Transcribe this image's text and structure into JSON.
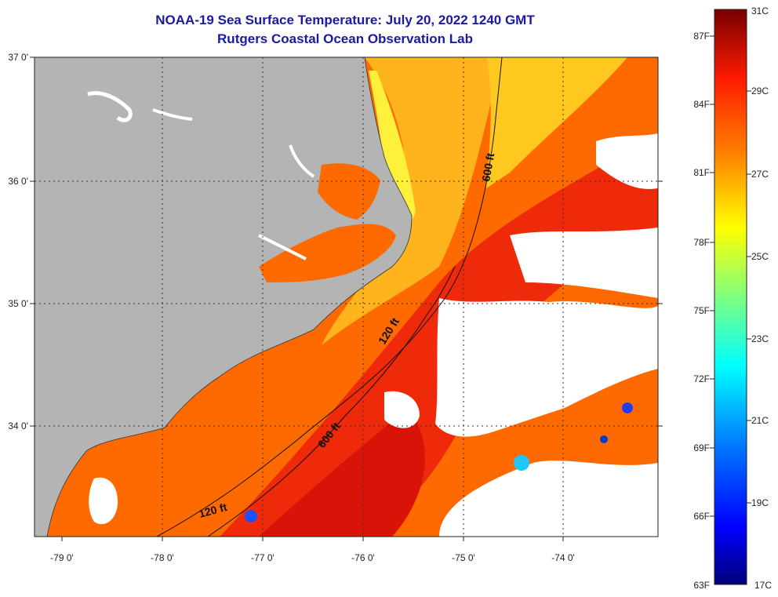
{
  "title": "NOAA-19 Sea Surface Temperature:  July 20, 2022 1240 GMT",
  "subtitle": "Rutgers Coastal Ocean Observation Lab",
  "lat_labels": [
    "37 0'",
    "36 0'",
    "35 0'",
    "34 0'"
  ],
  "lon_labels": [
    "-79 0'",
    "-78 0'",
    "-77 0'",
    "-76 0'",
    "-75 0'",
    "-74 0'"
  ],
  "contours": {
    "c600_north": "600 ft",
    "c120": "120 ft",
    "c600_south": "600 ft",
    "c120_south": "120 ft"
  },
  "colorbar": {
    "f_labels": [
      "87F",
      "84F",
      "81F",
      "78F",
      "75F",
      "72F",
      "69F",
      "66F",
      "63F"
    ],
    "c_labels": [
      "31C",
      "29C",
      "27C",
      "25C",
      "23C",
      "21C",
      "19C",
      "17C"
    ]
  },
  "colors": {
    "land": "#b4b4b4",
    "ocean_warm": "#ff6a00",
    "ocean_hot": "#e8200c",
    "nearshore": "#ffd21e",
    "cloud": "#ffffff"
  }
}
